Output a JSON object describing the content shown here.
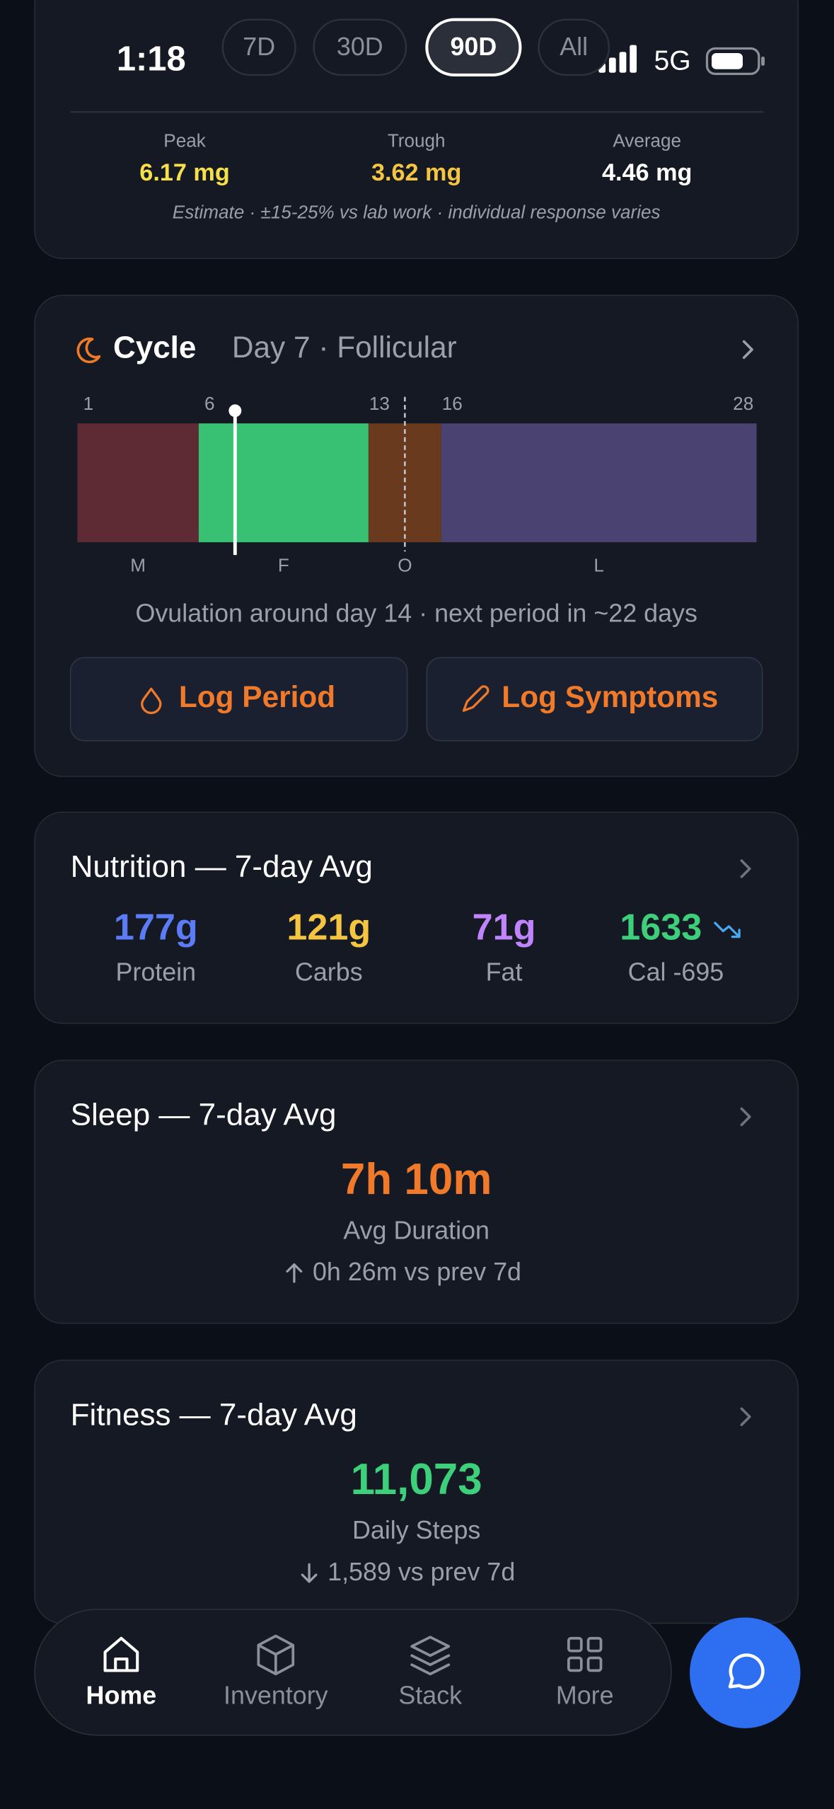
{
  "status_bar": {
    "time": "1:18",
    "network": "5G"
  },
  "range_tabs": {
    "options": [
      "7D",
      "30D",
      "90D",
      "All"
    ],
    "selected": "90D"
  },
  "levels": {
    "stats": [
      {
        "label": "Peak",
        "value": "6.17 mg"
      },
      {
        "label": "Trough",
        "value": "3.62 mg"
      },
      {
        "label": "Average",
        "value": "4.46 mg"
      }
    ],
    "note": "Estimate · ±15-25% vs lab work · individual response varies"
  },
  "cycle": {
    "title": "Cycle",
    "status": "Day 7 · Follicular",
    "day_ticks": [
      1,
      6,
      13,
      16,
      28
    ],
    "phases": [
      {
        "label": "M",
        "color": "#5e2a34"
      },
      {
        "label": "F",
        "color": "#38c172"
      },
      {
        "label": "O",
        "color": "#6a3a1f"
      },
      {
        "label": "L",
        "color": "#4a4270"
      }
    ],
    "today": 7,
    "ovulation_day": 14,
    "summary": "Ovulation around day 14 · next period in ~22 days",
    "buttons": [
      "Log Period",
      "Log Symptoms"
    ]
  },
  "nutrition": {
    "title": "Nutrition — 7-day Avg",
    "macros": [
      {
        "value": "177g",
        "label": "Protein",
        "color": "#5b7cf5"
      },
      {
        "value": "121g",
        "label": "Carbs",
        "color": "#f5c542"
      },
      {
        "value": "71g",
        "label": "Fat",
        "color": "#c084fc"
      },
      {
        "value": "1633",
        "label": "Cal -695",
        "color": "#3ecf7a"
      }
    ]
  },
  "sleep": {
    "title": "Sleep — 7-day Avg",
    "value": "7h 10m",
    "label": "Avg Duration",
    "change": "0h 26m vs prev 7d"
  },
  "fitness": {
    "title": "Fitness — 7-day Avg",
    "value": "11,073",
    "label": "Daily Steps",
    "change": "1,589 vs prev 7d"
  },
  "nav": {
    "items": [
      "Home",
      "Inventory",
      "Stack",
      "More"
    ],
    "active": "Home"
  }
}
